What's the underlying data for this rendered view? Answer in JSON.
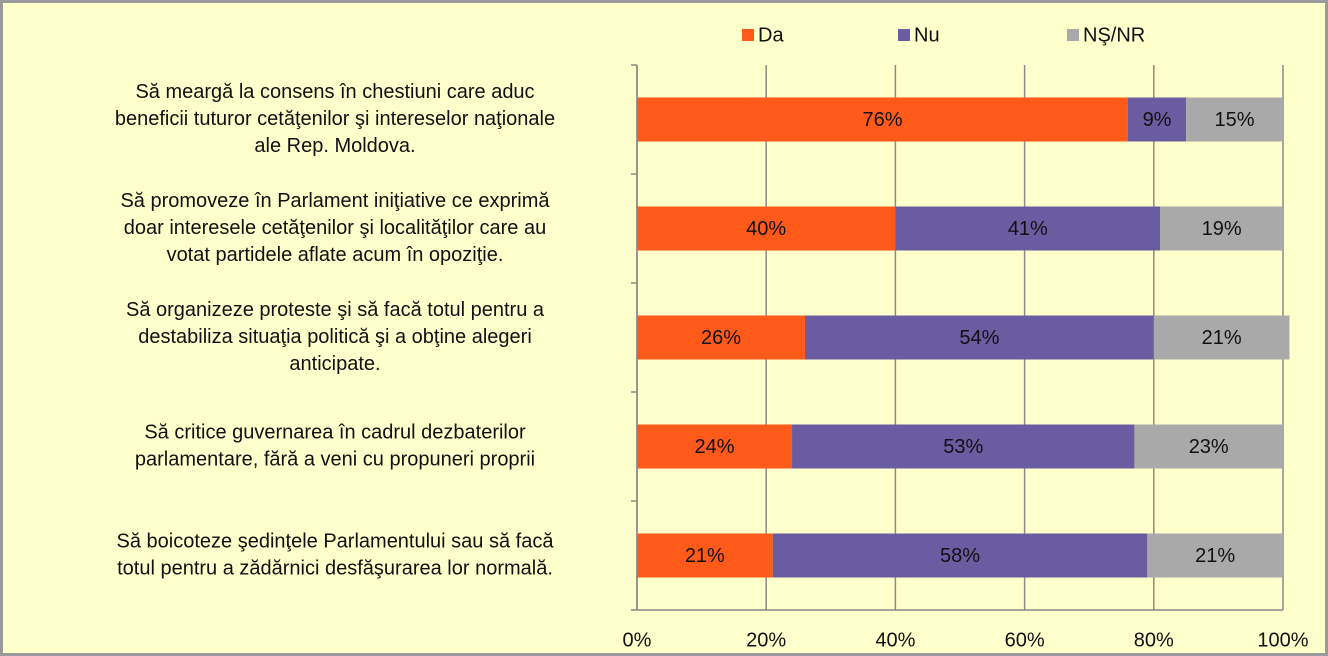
{
  "chart_data": {
    "type": "stacked_barh",
    "categories": [
      [
        "Să meargă la consens în chestiuni care aduc",
        "beneficii tuturor cetăţenilor şi intereselor naţionale",
        "ale Rep. Moldova."
      ],
      [
        "Să promoveze în Parlament iniţiative ce exprimă",
        "doar interesele cetăţenilor şi localităţilor care au",
        "votat partidele aflate acum în opoziţie."
      ],
      [
        "Să organizeze proteste şi să facă totul pentru a",
        "destabiliza situaţia politică şi a obţine alegeri",
        "anticipate."
      ],
      [
        "Să critice guvernarea în cadrul dezbaterilor",
        "parlamentare, fără a veni cu propuneri proprii"
      ],
      [
        "Să boicoteze şedinţele Parlamentului sau să facă",
        "totul pentru a zădărnici desfăşurarea lor normală."
      ]
    ],
    "series": [
      {
        "name": "Da",
        "color": "#ff5a1a",
        "values": [
          76,
          40,
          26,
          24,
          21
        ],
        "value_labels": [
          "76%",
          "40%",
          "26%",
          "24%",
          "21%"
        ]
      },
      {
        "name": "Nu",
        "color": "#6a5ca0",
        "values": [
          9,
          41,
          54,
          53,
          58
        ],
        "value_labels": [
          "9%",
          "41%",
          "54%",
          "53%",
          "58%"
        ]
      },
      {
        "name": "NŞ/NR",
        "color": "#a9a9a9",
        "values": [
          15,
          19,
          21,
          23,
          21
        ],
        "value_labels": [
          "15%",
          "19%",
          "21%",
          "23%",
          "21%"
        ]
      }
    ],
    "xlim": [
      0,
      100
    ],
    "xticks": [
      {
        "value": 0,
        "label": "0%"
      },
      {
        "value": 20,
        "label": "20%"
      },
      {
        "value": 40,
        "label": "40%"
      },
      {
        "value": 60,
        "label": "60%"
      },
      {
        "value": 80,
        "label": "80%"
      },
      {
        "value": 100,
        "label": "100%"
      }
    ],
    "grid": true,
    "legend": "top"
  }
}
